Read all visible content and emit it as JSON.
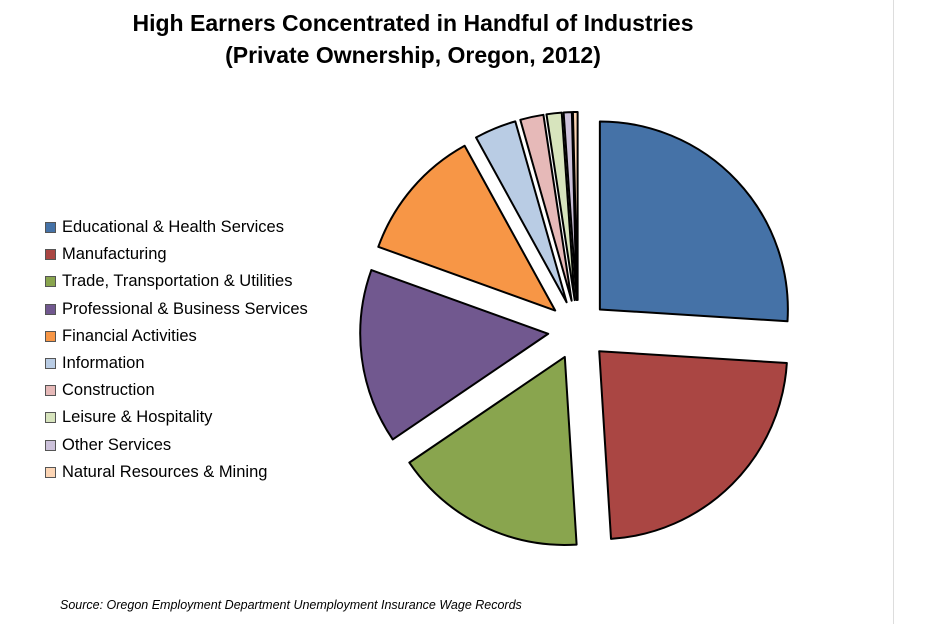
{
  "chart_data": {
    "type": "pie",
    "title": "High Earners Concentrated in Handful of Industries",
    "subtitle": "(Private Ownership, Oregon, 2012)",
    "categories": [
      "Educational & Health Services",
      "Manufacturing",
      "Trade, Transportation & Utilities",
      "Professional & Business Services",
      "Financial Activities",
      "Information",
      "Construction",
      "Leisure & Hospitality",
      "Other Services",
      "Natural Resources & Mining"
    ],
    "values": [
      26,
      23,
      16.5,
      15,
      11.5,
      3.6,
      2,
      1.3,
      0.7,
      0.4
    ],
    "colors": [
      "#4572a7",
      "#aa4643",
      "#89a54e",
      "#71588f",
      "#f79646",
      "#b9cce4",
      "#e6b9b8",
      "#d7e4bd",
      "#ccc1da",
      "#fcd5b5"
    ],
    "exploded": true,
    "legend": "left",
    "source": "Source: Oregon Employment Department Unemployment Insurance Wage Records"
  }
}
